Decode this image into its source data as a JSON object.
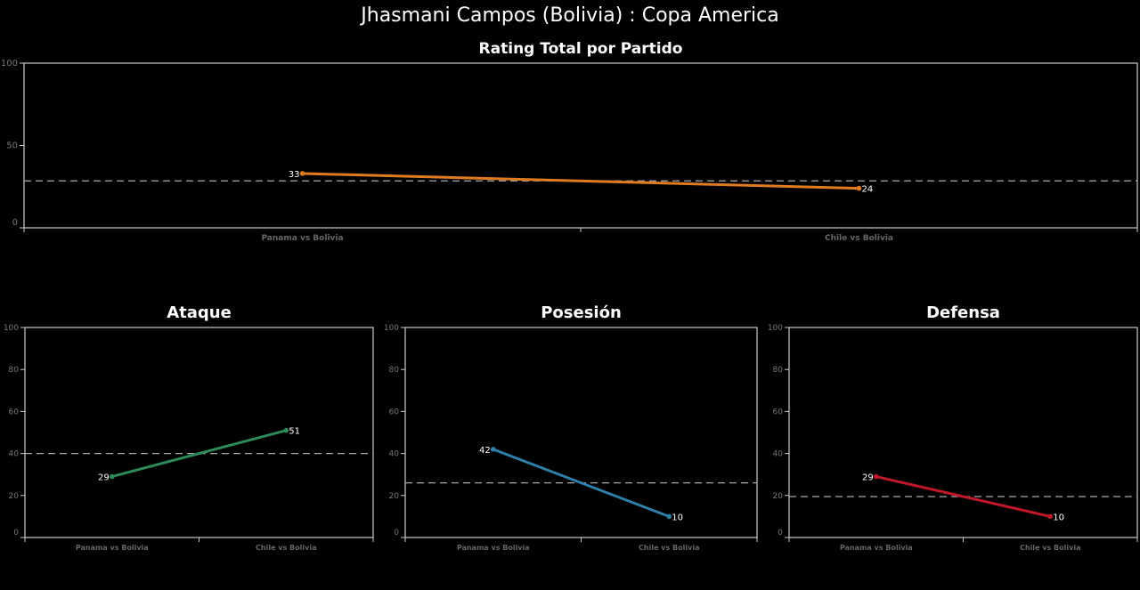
{
  "title": "Jhasmani Campos (Bolivia) :  Copa  America",
  "chart_data": [
    {
      "type": "line",
      "title": "Rating Total por Partido",
      "categories": [
        "Panama vs Bolivia",
        "Chile vs Bolivia"
      ],
      "values": [
        33,
        24
      ],
      "value_labels": [
        "33",
        "24"
      ],
      "reference_line": 28.5,
      "ylim": [
        0,
        100
      ],
      "yticks": [
        "0",
        "50",
        "100"
      ],
      "color": "#e07b1f",
      "grid": false
    },
    {
      "type": "line",
      "title": "Ataque",
      "categories": [
        "Panama vs Bolivia",
        "Chile vs Bolivia"
      ],
      "values": [
        29,
        51
      ],
      "value_labels": [
        "29",
        "51"
      ],
      "reference_line": 40,
      "ylim": [
        0,
        100
      ],
      "yticks": [
        "0",
        "20",
        "40",
        "60",
        "80",
        "100"
      ],
      "color": "#2e8b57",
      "grid": false
    },
    {
      "type": "line",
      "title": "Posesión",
      "categories": [
        "Panama vs Bolivia",
        "Chile vs Bolivia"
      ],
      "values": [
        42,
        10
      ],
      "value_labels": [
        "42",
        "10"
      ],
      "reference_line": 26,
      "ylim": [
        0,
        100
      ],
      "yticks": [
        "0",
        "20",
        "40",
        "60",
        "80",
        "100"
      ],
      "color": "#2f7fa8",
      "grid": false
    },
    {
      "type": "line",
      "title": "Defensa",
      "categories": [
        "Panama vs Bolivia",
        "Chile vs Bolivia"
      ],
      "values": [
        29,
        10
      ],
      "value_labels": [
        "29",
        "10"
      ],
      "reference_line": 19.5,
      "ylim": [
        0,
        100
      ],
      "yticks": [
        "0",
        "20",
        "40",
        "60",
        "80",
        "100"
      ],
      "color": "#c0182a",
      "grid": false
    }
  ]
}
